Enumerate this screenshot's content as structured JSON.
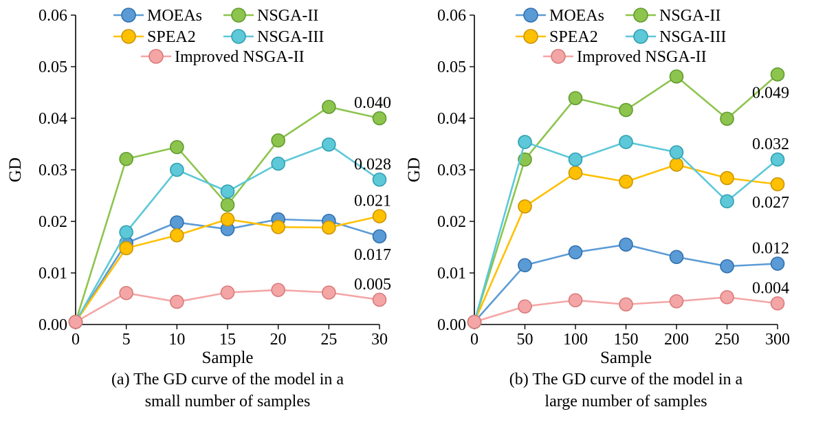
{
  "chart_data": [
    {
      "type": "line",
      "caption": [
        "(a) The GD curve of the model in a",
        "small number of samples"
      ],
      "xlabel": "Sample",
      "ylabel": "GD",
      "categories": [
        "0",
        "5",
        "10",
        "15",
        "20",
        "25",
        "30"
      ],
      "ylim": [
        0,
        0.06
      ],
      "yticks": [
        "0.00",
        "0.01",
        "0.02",
        "0.03",
        "0.04",
        "0.05",
        "0.06"
      ],
      "grid": false,
      "legend_position": "top",
      "series": [
        {
          "name": "MOEAs",
          "color": "#5b9bd5",
          "edge": "#2e6fb0",
          "values": [
            0.0005,
            0.0158,
            0.0198,
            0.0185,
            0.0204,
            0.0201,
            0.0171
          ]
        },
        {
          "name": "NSGA-II",
          "color": "#8dc44e",
          "edge": "#5f9a2c",
          "values": [
            0.0005,
            0.0321,
            0.0344,
            0.0232,
            0.0357,
            0.0422,
            0.04
          ]
        },
        {
          "name": "SPEA2",
          "color": "#ffc000",
          "edge": "#c99400",
          "values": [
            0.0005,
            0.0148,
            0.0173,
            0.0204,
            0.0189,
            0.0188,
            0.021
          ]
        },
        {
          "name": "NSGA-III",
          "color": "#5cc8d8",
          "edge": "#2f9fb0",
          "values": [
            0.0005,
            0.0179,
            0.03,
            0.0258,
            0.0312,
            0.0349,
            0.0281
          ]
        },
        {
          "name": "Improved NSGA-II",
          "color": "#f4a5a5",
          "edge": "#d97a7a",
          "values": [
            0.0005,
            0.0061,
            0.0044,
            0.0062,
            0.0067,
            0.0062,
            0.0048
          ]
        }
      ],
      "annotations": [
        {
          "text": "0.040",
          "series": "NSGA-II",
          "index": 6,
          "pos": "above"
        },
        {
          "text": "0.028",
          "series": "NSGA-III",
          "index": 6,
          "pos": "above"
        },
        {
          "text": "0.021",
          "series": "SPEA2",
          "index": 6,
          "pos": "above"
        },
        {
          "text": "0.017",
          "series": "MOEAs",
          "index": 6,
          "pos": "below"
        },
        {
          "text": "0.005",
          "series": "Improved NSGA-II",
          "index": 6,
          "pos": "above"
        }
      ]
    },
    {
      "type": "line",
      "caption": [
        "(b) The GD curve of the model in a",
        "large number of samples"
      ],
      "xlabel": "Sample",
      "ylabel": "GD",
      "categories": [
        "0",
        "50",
        "100",
        "150",
        "200",
        "250",
        "300"
      ],
      "ylim": [
        0,
        0.06
      ],
      "yticks": [
        "0.00",
        "0.01",
        "0.02",
        "0.03",
        "0.04",
        "0.05",
        "0.06"
      ],
      "grid": false,
      "legend_position": "top",
      "series": [
        {
          "name": "MOEAs",
          "color": "#5b9bd5",
          "edge": "#2e6fb0",
          "values": [
            0.0005,
            0.0115,
            0.014,
            0.0155,
            0.0131,
            0.0113,
            0.0118
          ]
        },
        {
          "name": "NSGA-II",
          "color": "#8dc44e",
          "edge": "#5f9a2c",
          "values": [
            0.0005,
            0.032,
            0.0439,
            0.0416,
            0.0481,
            0.0399,
            0.0485
          ]
        },
        {
          "name": "SPEA2",
          "color": "#ffc000",
          "edge": "#c99400",
          "values": [
            0.0005,
            0.0229,
            0.0294,
            0.0277,
            0.031,
            0.0284,
            0.0272
          ]
        },
        {
          "name": "NSGA-III",
          "color": "#5cc8d8",
          "edge": "#2f9fb0",
          "values": [
            0.0005,
            0.0354,
            0.032,
            0.0354,
            0.0334,
            0.0239,
            0.032
          ]
        },
        {
          "name": "Improved NSGA-II",
          "color": "#f4a5a5",
          "edge": "#d97a7a",
          "values": [
            0.0005,
            0.0035,
            0.0047,
            0.0039,
            0.0045,
            0.0053,
            0.0041
          ]
        }
      ],
      "annotations": [
        {
          "text": "0.049",
          "series": "NSGA-II",
          "index": 6,
          "pos": "below"
        },
        {
          "text": "0.032",
          "series": "NSGA-III",
          "index": 6,
          "pos": "above"
        },
        {
          "text": "0.027",
          "series": "SPEA2",
          "index": 6,
          "pos": "below"
        },
        {
          "text": "0.012",
          "series": "MOEAs",
          "index": 6,
          "pos": "above"
        },
        {
          "text": "0.004",
          "series": "Improved NSGA-II",
          "index": 6,
          "pos": "above"
        }
      ]
    }
  ]
}
